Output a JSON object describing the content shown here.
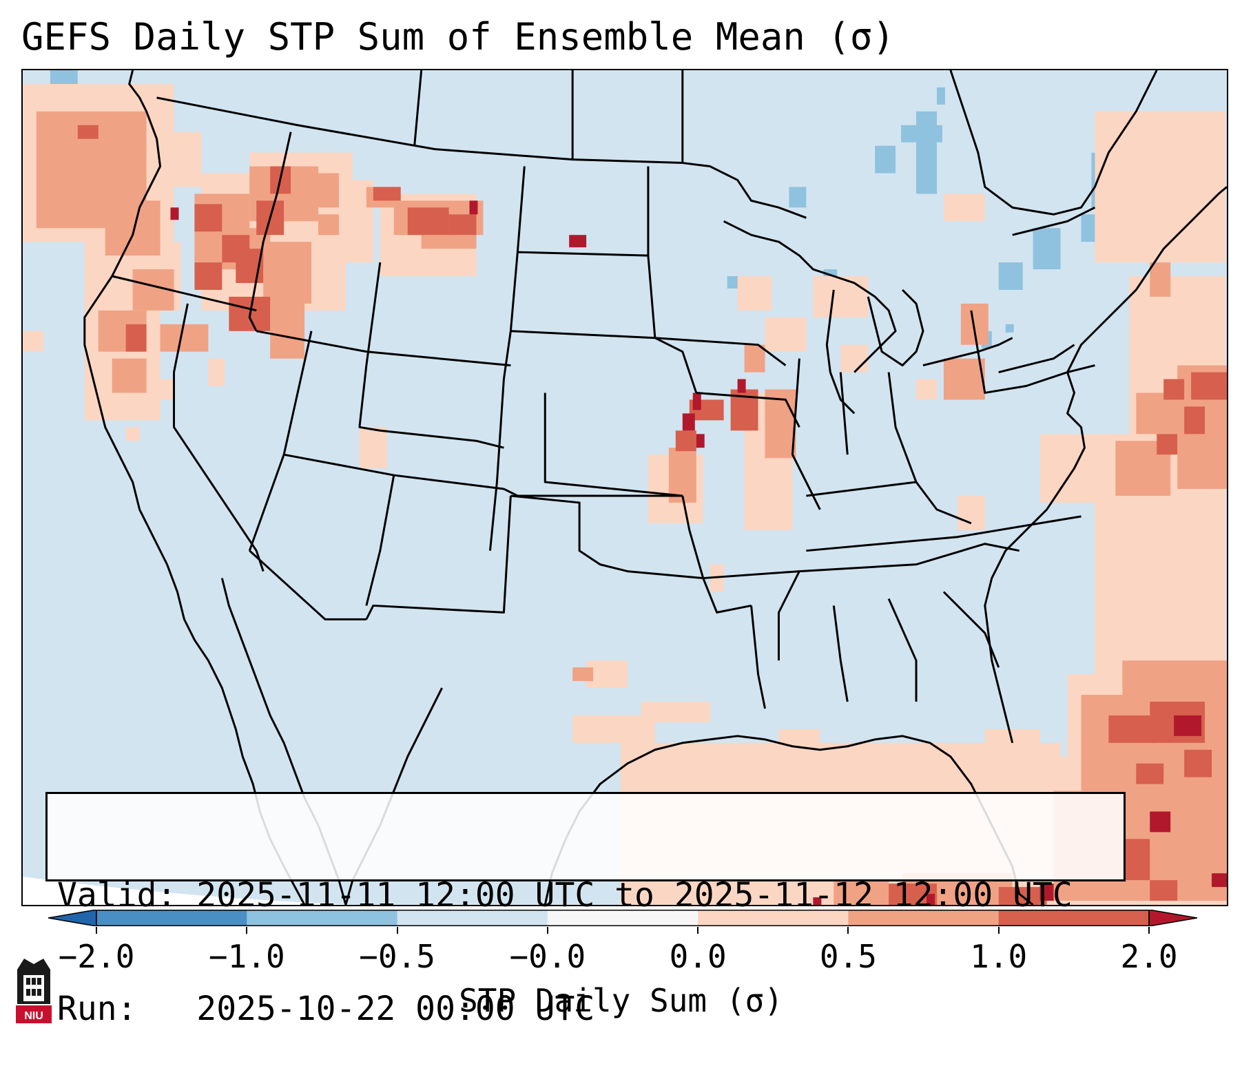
{
  "title": "GEFS Daily STP Sum of Ensemble Mean (σ)",
  "info": {
    "valid_line": "Valid: 2025-11-11 12:00 UTC to 2025-11-12 12:00 UTC",
    "run_line": "Run:   2025-10-22 00:00 UTC"
  },
  "colorbar": {
    "label": "STP Daily Sum (σ)",
    "ticks": [
      "−2.0",
      "−1.0",
      "−0.5",
      "−0.0",
      "0.0",
      "0.5",
      "1.0",
      "2.0"
    ],
    "colors": [
      "#4a8fc4",
      "#8fc2de",
      "#d2e4f0",
      "#f7f7f7",
      "#fbd6c2",
      "#f0a285",
      "#d6604d",
      "#b2182b"
    ]
  },
  "logo": {
    "text": "NIU",
    "brand_color": "#c8102e"
  },
  "map": {
    "region": "Continental United States",
    "background_color": "#d2e4f0",
    "field_colors": {
      "light_positive": "#fbd6c2",
      "moderate_positive": "#f0a285",
      "strong_positive": "#d6604d",
      "extreme_positive": "#b2182b",
      "light_negative": "#8fc2de"
    }
  }
}
